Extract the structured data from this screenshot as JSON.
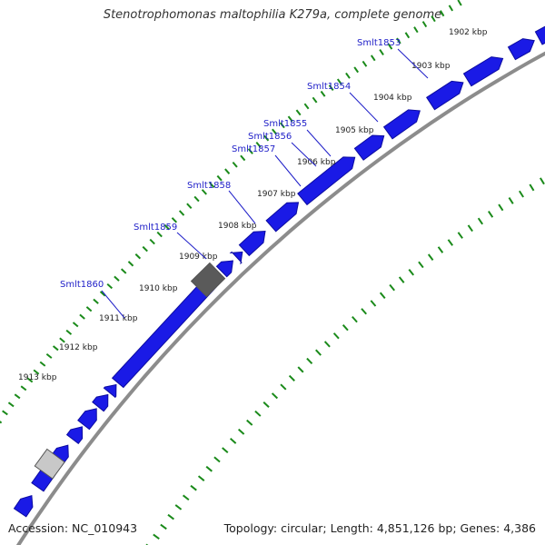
{
  "title": "Stenotrophomonas maltophilia K279a, complete genome",
  "accession": "Accession: NC_010943",
  "summary": "Topology: circular; Length: 4,851,126 bp; Genes: 4,386",
  "colors": {
    "gene": "#1a1ae6",
    "gene_dark": "#0c0ca0",
    "highlight_gene": "#5a5a5a",
    "pale_gene": "#c8c8c8",
    "backbone": "#8c8c8c",
    "tick_green": "#1a8a1a",
    "label_blue": "#1e1ec8"
  },
  "ticks": [
    "1902 kbp",
    "1903 kbp",
    "1904 kbp",
    "1905 kbp",
    "1906 kbp",
    "1907 kbp",
    "1908 kbp",
    "1909 kbp",
    "1910 kbp",
    "1911 kbp",
    "1912 kbp",
    "1913 kbp"
  ],
  "gene_labels": [
    "Smlt1853",
    "Smlt1854",
    "Smlt1855",
    "Smlt1856",
    "Smlt1857",
    "Smlt1858",
    "Smlt1859",
    "Smlt1860"
  ]
}
